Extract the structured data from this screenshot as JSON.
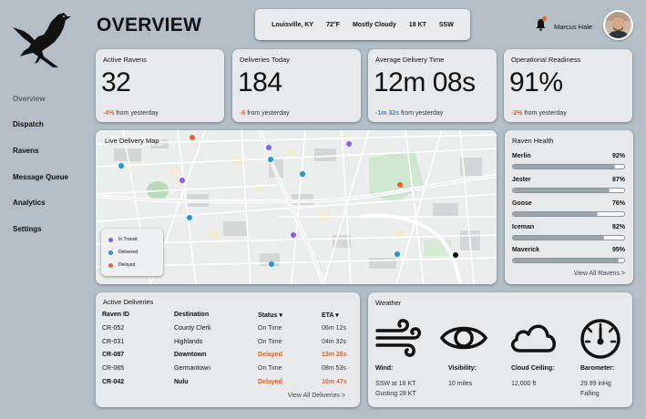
{
  "app": {
    "title": "OVERVIEW"
  },
  "sidebar": {
    "items": [
      {
        "label": "Overview"
      },
      {
        "label": "Dispatch"
      },
      {
        "label": "Ravens"
      },
      {
        "label": "Message Queue"
      },
      {
        "label": "Analytics"
      },
      {
        "label": "Settings"
      }
    ]
  },
  "header": {
    "weather": {
      "location": "Louisville, KY",
      "temp": "72°F",
      "condition": "Mostly Cloudy",
      "wind": "18 KT",
      "direction": "SSW"
    },
    "user": {
      "name": "Marcus Hale"
    }
  },
  "kpis": [
    {
      "label": "Active Ravens",
      "value": "32",
      "delta": "-4%",
      "delta_text": "from yesterday",
      "delta_color": "red"
    },
    {
      "label": "Deliveries Today",
      "value": "184",
      "delta": "-6",
      "delta_text": "from yesterday",
      "delta_color": "red"
    },
    {
      "label": "Average Delivery Time",
      "value": "12m 08s",
      "delta": "-1m 32s",
      "delta_text": "from yesterday",
      "delta_color": "blue"
    },
    {
      "label": "Operational Readiness",
      "value": "91%",
      "delta": "-2%",
      "delta_text": "from yesterday",
      "delta_color": "red"
    }
  ],
  "map": {
    "title": "Live Delivery Map",
    "legend": [
      {
        "label": "In Transit",
        "color": "#8a5cf5"
      },
      {
        "label": "Delivered",
        "color": "#1f97d8"
      },
      {
        "label": "Delayed",
        "color": "#e8642a"
      }
    ]
  },
  "raven_health": {
    "title": "Raven Health",
    "items": [
      {
        "name": "Merlin",
        "percent": "92%",
        "value": 92
      },
      {
        "name": "Jester",
        "percent": "87%",
        "value": 87
      },
      {
        "name": "Goose",
        "percent": "76%",
        "value": 76
      },
      {
        "name": "Iceman",
        "percent": "82%",
        "value": 82
      },
      {
        "name": "Maverick",
        "percent": "95%",
        "value": 95
      }
    ],
    "link": "View All Ravens >"
  },
  "deliveries": {
    "title": "Active Deliveries",
    "columns": {
      "id": "Raven ID",
      "dest": "Destination",
      "status": "Status ▾",
      "eta": "ETA ▾"
    },
    "rows": [
      {
        "id": "CR-052",
        "dest": "County Clerk",
        "status": "On Time",
        "eta": "06m 12s",
        "delayed": false
      },
      {
        "id": "CR-031",
        "dest": "Highlands",
        "status": "On Time",
        "eta": "04m 32s",
        "delayed": false
      },
      {
        "id": "CR-087",
        "dest": "Downtown",
        "status": "Delayed",
        "eta": "13m 26s",
        "delayed": true
      },
      {
        "id": "CR-065",
        "dest": "Germantown",
        "status": "On Time",
        "eta": "08m 53s",
        "delayed": false
      },
      {
        "id": "CR-042",
        "dest": "Nulu",
        "status": "Delayed",
        "eta": "10m 47s",
        "delayed": true
      }
    ],
    "link": "View All Deliveries >"
  },
  "weather": {
    "title": "Weather",
    "items": [
      {
        "label": "Wind:",
        "line1": "SSW at 18 KT",
        "line2": "Gusting 28 KT",
        "icon": "wind-icon"
      },
      {
        "label": "Visibility:",
        "line1": "10 miles",
        "line2": "",
        "icon": "eye-icon"
      },
      {
        "label": "Cloud Ceiling:",
        "line1": "12,000 ft",
        "line2": "",
        "icon": "cloud-icon"
      },
      {
        "label": "Barometer:",
        "line1": "29.99 inHg",
        "line2": "Falling",
        "icon": "gauge-icon"
      }
    ]
  }
}
